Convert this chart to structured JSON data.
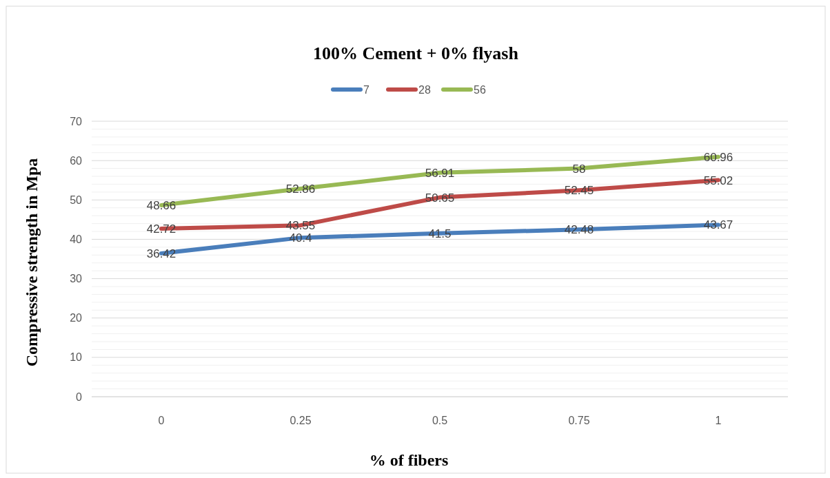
{
  "chart_data": {
    "type": "line",
    "title": "100% Cement + 0% flyash",
    "xlabel": "% of fibers",
    "ylabel": "Compressive strength in Mpa",
    "categories": [
      "0",
      "0.25",
      "0.5",
      "0.75",
      "1"
    ],
    "series": [
      {
        "name": "7",
        "color": "#4a7ebb",
        "values": [
          36.42,
          40.4,
          41.5,
          42.48,
          43.67
        ]
      },
      {
        "name": "28",
        "color": "#be4b48",
        "values": [
          42.72,
          43.55,
          50.65,
          52.45,
          55.02
        ]
      },
      {
        "name": "56",
        "color": "#98b954",
        "values": [
          48.66,
          52.86,
          56.91,
          58,
          60.96
        ]
      }
    ],
    "ylim": [
      0,
      70
    ],
    "yticks": [
      0,
      {
        "value": 2,
        "label": null
      },
      {
        "value": 4,
        "label": null
      },
      {
        "value": 6,
        "label": null
      },
      {
        "value": 8,
        "label": null
      },
      10,
      {
        "value": 12,
        "label": null
      },
      {
        "value": 14,
        "label": null
      },
      {
        "value": 16,
        "label": null
      },
      {
        "value": 18,
        "label": null
      },
      20,
      {
        "value": 22,
        "label": null
      },
      {
        "value": 24,
        "label": null
      },
      {
        "value": 26,
        "label": null
      },
      {
        "value": 28,
        "label": null
      },
      30,
      {
        "value": 32,
        "label": null
      },
      {
        "value": 34,
        "label": null
      },
      {
        "value": 36,
        "label": null
      },
      {
        "value": 38,
        "label": null
      },
      40,
      {
        "value": 42,
        "label": null
      },
      {
        "value": 44,
        "label": null
      },
      {
        "value": 46,
        "label": null
      },
      {
        "value": 48,
        "label": null
      },
      50,
      {
        "value": 52,
        "label": null
      },
      {
        "value": 54,
        "label": null
      },
      {
        "value": 56,
        "label": null
      },
      {
        "value": 58,
        "label": null
      },
      60,
      {
        "value": 62,
        "label": null
      },
      {
        "value": 64,
        "label": null
      },
      {
        "value": 66,
        "label": null
      },
      {
        "value": 68,
        "label": null
      },
      70
    ],
    "grid": "y",
    "legend": "top",
    "data_labels": true,
    "marker": "none",
    "line_style": "solid"
  }
}
